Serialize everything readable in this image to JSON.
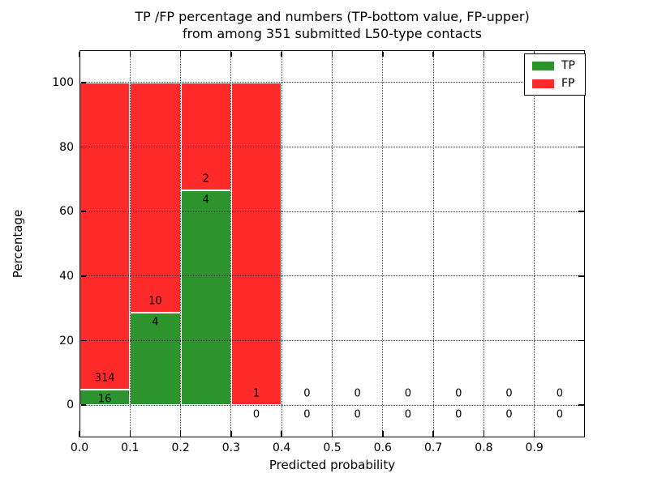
{
  "chart_data": {
    "type": "bar",
    "stacked": true,
    "title_line1": "TP /FP percentage and numbers (TP-bottom value, FP-upper)",
    "title_line2": "from among 351 submitted L50-type contacts",
    "xlabel": "Predicted probability",
    "ylabel": "Percentage",
    "total_contacts": 351,
    "xlim": [
      0.0,
      1.0
    ],
    "ylim": [
      -10,
      110
    ],
    "xticks": [
      "0.0",
      "0.1",
      "0.2",
      "0.3",
      "0.4",
      "0.5",
      "0.6",
      "0.7",
      "0.8",
      "0.9"
    ],
    "yticks": [
      "0",
      "20",
      "40",
      "60",
      "80",
      "100"
    ],
    "grid": "dotted black, drawn above bars",
    "legend": {
      "position": "upper right",
      "entries": [
        {
          "label": "TP",
          "color": "#2d942d"
        },
        {
          "label": "FP",
          "color": "#ff2a2a"
        }
      ]
    },
    "colors": {
      "tp": "#2d942d",
      "fp": "#ff2a2a",
      "bar_edge": "#ffffff",
      "grid": "#000000",
      "text": "#000000"
    },
    "bins": [
      {
        "x0": 0.0,
        "x1": 0.1,
        "tp": 16,
        "fp": 314,
        "tp_pct": 4.85,
        "fp_pct": 95.15
      },
      {
        "x0": 0.1,
        "x1": 0.2,
        "tp": 4,
        "fp": 10,
        "tp_pct": 28.57,
        "fp_pct": 71.43
      },
      {
        "x0": 0.2,
        "x1": 0.3,
        "tp": 4,
        "fp": 2,
        "tp_pct": 66.67,
        "fp_pct": 33.33
      },
      {
        "x0": 0.3,
        "x1": 0.4,
        "tp": 0,
        "fp": 1,
        "tp_pct": 0,
        "fp_pct": 100
      },
      {
        "x0": 0.4,
        "x1": 0.5,
        "tp": 0,
        "fp": 0,
        "tp_pct": 0,
        "fp_pct": 0
      },
      {
        "x0": 0.5,
        "x1": 0.6,
        "tp": 0,
        "fp": 0,
        "tp_pct": 0,
        "fp_pct": 0
      },
      {
        "x0": 0.6,
        "x1": 0.7,
        "tp": 0,
        "fp": 0,
        "tp_pct": 0,
        "fp_pct": 0
      },
      {
        "x0": 0.7,
        "x1": 0.8,
        "tp": 0,
        "fp": 0,
        "tp_pct": 0,
        "fp_pct": 0
      },
      {
        "x0": 0.8,
        "x1": 0.9,
        "tp": 0,
        "fp": 0,
        "tp_pct": 0,
        "fp_pct": 0
      },
      {
        "x0": 0.9,
        "x1": 1.0,
        "tp": 0,
        "fp": 0,
        "tp_pct": 0,
        "fp_pct": 0
      }
    ]
  }
}
